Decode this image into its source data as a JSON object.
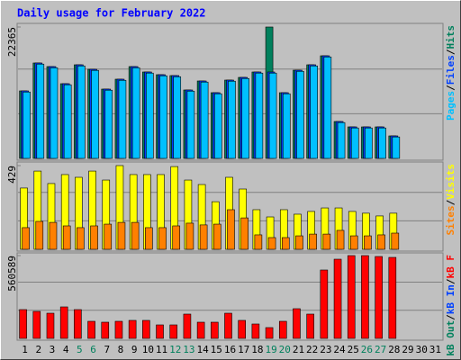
{
  "title": "Daily usage for February 2022",
  "categories": [
    "1",
    "2",
    "3",
    "4",
    "5",
    "6",
    "7",
    "8",
    "9",
    "10",
    "11",
    "12",
    "13",
    "14",
    "15",
    "16",
    "17",
    "18",
    "19",
    "20",
    "21",
    "22",
    "23",
    "24",
    "25",
    "26",
    "27",
    "28",
    "29",
    "30",
    "31"
  ],
  "highlight_categories": [
    "5",
    "6",
    "12",
    "13",
    "19",
    "20",
    "26",
    "27"
  ],
  "highlight_color": "#00805c",
  "legend_separator": "/",
  "chart_data": [
    {
      "type": "bar",
      "ylim": [
        0,
        22365
      ],
      "yticks": [
        22365
      ],
      "grid": true,
      "series": [
        {
          "name": "Hits",
          "color": "#00805c",
          "values": [
            11490,
            16239,
            15626,
            12715,
            15932,
            15166,
            11796,
            13481,
            15626,
            14707,
            14247,
            14094,
            11643,
            13175,
            11183,
            13328,
            13787,
            14707,
            22365,
            11183,
            15013,
            15932,
            17464,
            6281,
            5362,
            5362,
            5362,
            3830,
            null,
            null,
            null
          ]
        },
        {
          "name": "Files",
          "color": "#0040ff",
          "values": [
            11490,
            16239,
            15626,
            12715,
            15932,
            15166,
            11796,
            13481,
            15626,
            14707,
            14247,
            14094,
            11643,
            13175,
            11183,
            13328,
            13787,
            14707,
            14707,
            11183,
            15013,
            15932,
            17464,
            6281,
            5362,
            5362,
            5362,
            3830,
            null,
            null,
            null
          ]
        },
        {
          "name": "Pages",
          "color": "#00c0ff",
          "values": [
            11300,
            16050,
            15430,
            12530,
            15740,
            14980,
            11610,
            13290,
            15430,
            14520,
            14060,
            13900,
            11450,
            12990,
            11000,
            13140,
            13600,
            14520,
            14520,
            11000,
            14820,
            15740,
            17270,
            6100,
            5180,
            5180,
            5180,
            3650,
            null,
            null,
            null
          ]
        }
      ]
    },
    {
      "type": "bar",
      "ylim": [
        0,
        429
      ],
      "yticks": [
        429
      ],
      "grid": true,
      "series": [
        {
          "name": "Visits",
          "color": "#ffff00",
          "values": [
            314,
            401,
            337,
            383,
            369,
            401,
            355,
            429,
            383,
            383,
            383,
            424,
            355,
            332,
            244,
            369,
            309,
            203,
            166,
            203,
            180,
            194,
            212,
            212,
            194,
            185,
            171,
            185,
            null,
            null,
            null
          ]
        },
        {
          "name": "Sites",
          "color": "#ff8000",
          "values": [
            111,
            143,
            138,
            120,
            111,
            120,
            129,
            138,
            138,
            111,
            111,
            120,
            134,
            125,
            129,
            203,
            161,
            74,
            60,
            60,
            69,
            78,
            78,
            97,
            69,
            69,
            74,
            83,
            null,
            null,
            null
          ]
        }
      ]
    },
    {
      "type": "bar",
      "ylim": [
        0,
        560589
      ],
      "yticks": [
        560589
      ],
      "grid": true,
      "series": [
        {
          "name": "kB F",
          "color": "#ff0000",
          "values": [
            194989,
            182802,
            170615,
            213269,
            194989,
            115775,
            109681,
            115775,
            121868,
            121868,
            91401,
            91401,
            164522,
            109681,
            109681,
            170615,
            121868,
            97494,
            73121,
            115775,
            201082,
            164522,
            463098,
            536219,
            560589,
            560589,
            554499,
            548406,
            null,
            null,
            null
          ]
        },
        {
          "name": "kB In",
          "color": "#0040ff",
          "values": [
            null,
            null,
            null,
            null,
            null,
            null,
            null,
            null,
            null,
            null,
            null,
            null,
            null,
            null,
            null,
            null,
            null,
            null,
            null,
            null,
            null,
            null,
            null,
            null,
            null,
            null,
            null,
            null,
            null,
            null,
            null
          ]
        },
        {
          "name": "kB Out",
          "color": "#00805c",
          "values": [
            null,
            null,
            null,
            null,
            null,
            null,
            null,
            null,
            null,
            null,
            null,
            null,
            null,
            null,
            null,
            null,
            null,
            null,
            null,
            null,
            null,
            null,
            null,
            null,
            null,
            null,
            null,
            null,
            null,
            null,
            null
          ]
        }
      ]
    }
  ]
}
